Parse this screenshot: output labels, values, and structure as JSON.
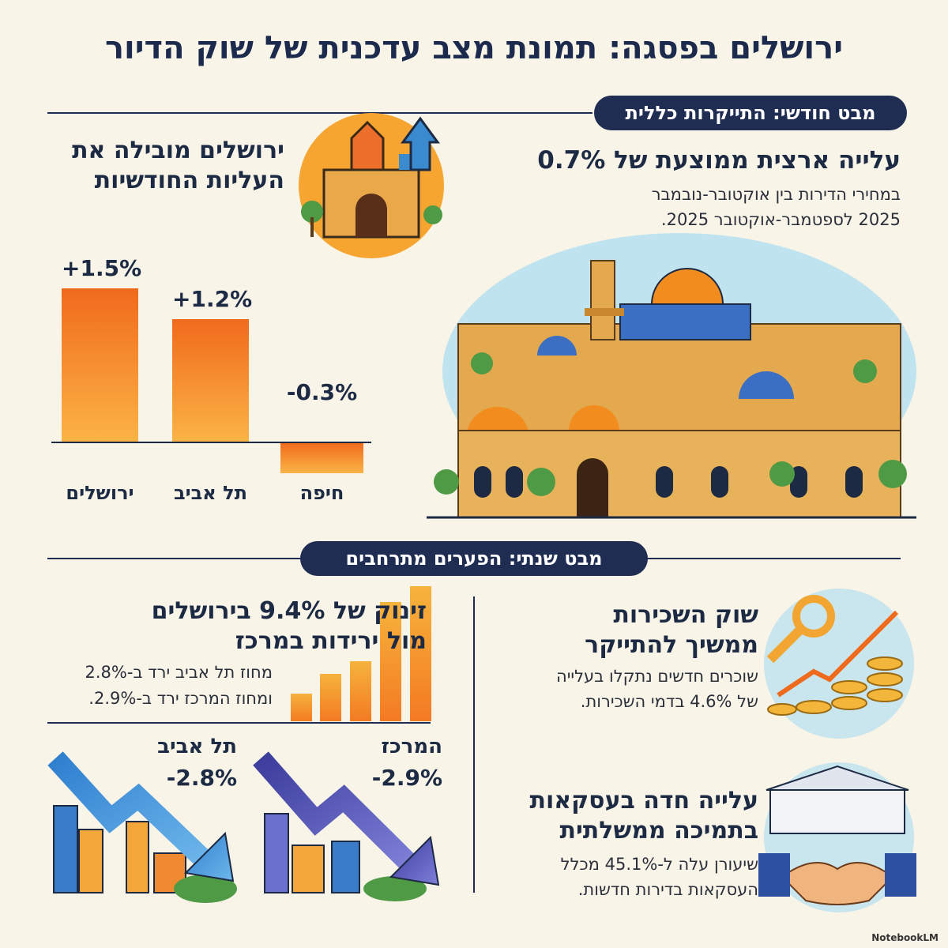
{
  "title": "ירושלים בפסגה: תמונת מצב עדכנית של שוק הדיור",
  "monthly": {
    "badge": "מבט חודשי: התייקרות כללית",
    "headline": "עלייה ארצית ממוצעת של 0.7%",
    "text": [
      "במחירי הדירות בין אוקטובר-נובמבר",
      "2025 לספטמבר-אוקטובר 2025."
    ],
    "chart": {
      "type": "bar",
      "title": [
        "ירושלים מובילה את",
        "העליות החודשיות"
      ],
      "categories": [
        "ירושלים",
        "תל אביב",
        "חיפה"
      ],
      "values": [
        1.5,
        1.2,
        -0.3
      ],
      "value_labels": [
        "+1.5%",
        "+1.2%",
        "-0.3%"
      ]
    }
  },
  "annual": {
    "badge": "מבט שנתי: הפערים מתרחבים",
    "headline": [
      "זינוק של 9.4% בירושלים",
      "מול ירידות במרכז"
    ],
    "text": [
      "מחוז תל אביב ירד ב-2.8%",
      "ומחוז המרכז ירד ב-2.9%."
    ],
    "declines": [
      {
        "name": "תל אביב",
        "value": -2.8,
        "label": "-2.8%"
      },
      {
        "name": "המרכז",
        "value": -2.9,
        "label": "-2.9%"
      }
    ],
    "rent": {
      "headline": [
        "שוק השכירות",
        "ממשיך להתייקר"
      ],
      "text": [
        "שוכרים חדשים נתקלו בעלייה",
        "של 4.6% בדמי השכירות."
      ]
    },
    "government": {
      "headline": [
        "עלייה חדה בעסקאות",
        "בתמיכה ממשלתית"
      ],
      "text": [
        "שיעורן עלה ל-45.1% מכלל",
        "העסקאות בדירות חדשות."
      ]
    }
  },
  "footer": "NotebookLM"
}
